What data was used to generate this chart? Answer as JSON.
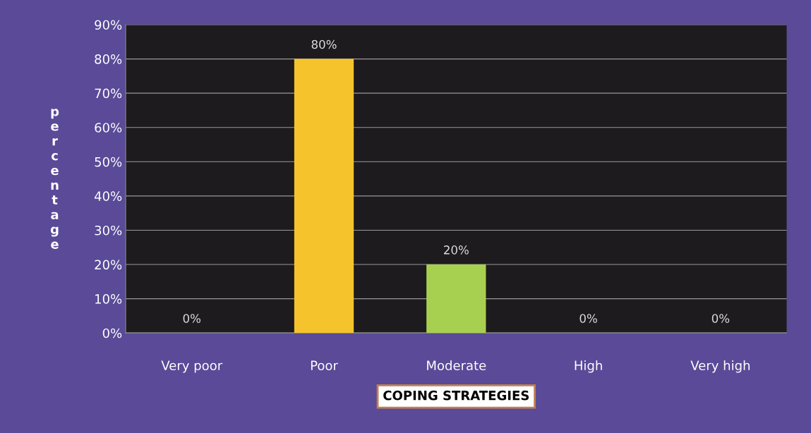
{
  "chart_data": {
    "type": "bar",
    "xlabel": "COPING STRATEGIES",
    "ylabel": "percentage",
    "categories": [
      "Very poor",
      "Poor",
      "Moderate",
      "High",
      "Very high"
    ],
    "values": [
      0,
      80,
      20,
      0,
      0
    ],
    "colors": [
      "#f5c32c",
      "#f5c32c",
      "#a8d050",
      "#a8d050",
      "#a8d050"
    ],
    "value_labels": [
      "0%",
      "80%",
      "20%",
      "0%",
      "0%"
    ],
    "ylim": [
      0,
      90
    ],
    "yticks": [
      {
        "value": 0,
        "label": "0%"
      },
      {
        "value": 10,
        "label": "10%"
      },
      {
        "value": 20,
        "label": "20%"
      },
      {
        "value": 30,
        "label": "30%"
      },
      {
        "value": 40,
        "label": "40%"
      },
      {
        "value": 50,
        "label": "50%"
      },
      {
        "value": 60,
        "label": "60%"
      },
      {
        "value": 70,
        "label": "70%"
      },
      {
        "value": 80,
        "label": "80%"
      },
      {
        "value": 90,
        "label": "90%"
      }
    ],
    "grid": "y",
    "legend": false
  }
}
